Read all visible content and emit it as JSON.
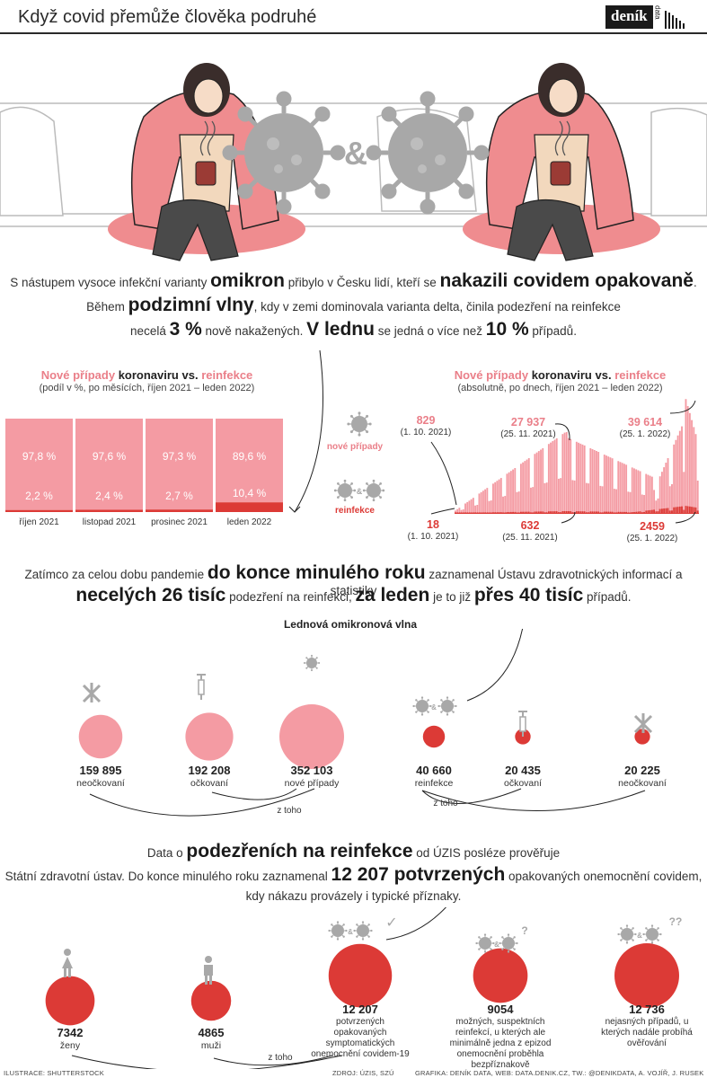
{
  "header": {
    "title": "Když covid přemůže člověka podruhé",
    "logo": "deník",
    "logo_sub": "data"
  },
  "hero": {
    "ampersand": "&"
  },
  "intro": {
    "l1a": "S nástupem vysoce infekční varianty ",
    "l1b": "omikron",
    "l1c": " přibylo v Česku lidí, kteří se ",
    "l1d": "nakazili covidem opakovaně",
    "l1e": ".",
    "l2a": "Během ",
    "l2b": "podzimní vlny",
    "l2c": ", kdy v zemi dominovala varianta delta, činila podezření na reinfekce",
    "l3a": "necelá ",
    "l3b": "3 %",
    "l3c": " nově nakažených. ",
    "l3d": "V lednu",
    "l3e": " se jedná o více než ",
    "l3f": "10 %",
    "l3g": " případů."
  },
  "chart_data": [
    {
      "type": "bar",
      "title_parts": [
        "Nové případy",
        " koronaviru ",
        "vs.",
        " reinfekce"
      ],
      "subtitle": "(podíl v %, po měsících, říjen 2021 – leden 2022)",
      "categories": [
        "říjen 2021",
        "listopad 2021",
        "prosinec 2021",
        "leden 2022"
      ],
      "series": [
        {
          "name": "nové případy",
          "values": [
            97.8,
            97.6,
            97.3,
            89.6
          ],
          "labels": [
            "97,8 %",
            "97,6 %",
            "97,3 %",
            "89,6 %"
          ],
          "color": "#f49ba3"
        },
        {
          "name": "reinfekce",
          "values": [
            2.2,
            2.4,
            2.7,
            10.4
          ],
          "labels": [
            "2,2 %",
            "2,4 %",
            "2,7 %",
            "10,4 %"
          ],
          "color": "#dc3a36"
        }
      ],
      "stacked": true,
      "ylim": [
        0,
        100
      ]
    },
    {
      "type": "bar",
      "title_parts": [
        "Nové případy",
        " koronaviru ",
        "vs.",
        " reinfekce"
      ],
      "subtitle": "(absolutně, po dnech, říjen 2021 – leden 2022)",
      "x": [
        "1. 10. 2021",
        "25. 11. 2021",
        "25. 1. 2022"
      ],
      "series": [
        {
          "name": "nové případy",
          "values": [
            829,
            27937,
            39614
          ],
          "labels": [
            "829",
            "27 937",
            "39 614"
          ],
          "color": "#f49ba3"
        },
        {
          "name": "reinfekce",
          "values": [
            18,
            632,
            2459
          ],
          "labels": [
            "18",
            "632",
            "2459"
          ],
          "color": "#dc3a36"
        }
      ],
      "annotations_dates": [
        "(1. 10. 2021)",
        "(25. 11. 2021)",
        "(25. 1. 2022)"
      ],
      "xlim": [
        "1. 10. 2021",
        "31. 1. 2022"
      ],
      "ylim": [
        0,
        40000
      ]
    },
    {
      "type": "bubble",
      "title": "Lednová omikronová vlna",
      "items": [
        {
          "value": 159895,
          "label": "159 895",
          "desc": "neočkovaní",
          "color": "#f49ba3"
        },
        {
          "value": 192208,
          "label": "192 208",
          "desc": "očkovaní",
          "color": "#f49ba3"
        },
        {
          "value": 352103,
          "label": "352 103",
          "desc": "nové případy",
          "color": "#f49ba3"
        },
        {
          "value": 40660,
          "label": "40 660",
          "desc": "reinfekce",
          "color": "#dc3a36"
        },
        {
          "value": 20435,
          "label": "20 435",
          "desc": "očkovaní",
          "color": "#dc3a36"
        },
        {
          "value": 20225,
          "label": "20 225",
          "desc": "neočkovaní",
          "color": "#dc3a36"
        }
      ],
      "link_label": "z toho"
    },
    {
      "type": "bubble",
      "items": [
        {
          "value": 7342,
          "label": "7342",
          "desc": "ženy",
          "color": "#dc3a36"
        },
        {
          "value": 4865,
          "label": "4865",
          "desc": "muži",
          "color": "#dc3a36"
        },
        {
          "value": 12207,
          "label": "12 207",
          "desc": "potvrzených opakovaných symptomatických onemocnění covidem-19",
          "color": "#dc3a36"
        },
        {
          "value": 9054,
          "label": "9054",
          "desc": "možných, suspektních reinfekcí, u kterých ale minimálně jedna z epizod onemocnění proběhla bezpříznakově",
          "color": "#dc3a36"
        },
        {
          "value": 12736,
          "label": "12 736",
          "desc": "nejasných případů, u kterých nadále probíhá ověřování",
          "color": "#dc3a36"
        }
      ],
      "link_label": "z toho"
    }
  ],
  "chart2_labels": {
    "legend_new": "nové případy",
    "legend_reinf": "reinfekce"
  },
  "mid": {
    "l1a": "Zatímco za celou dobu pandemie ",
    "l1b": "do konce minulého roku",
    "l1c": " zaznamenal Ústavu zdravotnických informací a statistiky",
    "l2a": "necelých 26 tisíc",
    "l2b": " podezření na reinfekci, ",
    "l2c": "za leden",
    "l2d": " je to již ",
    "l2e": "přes 40 tisíc",
    "l2f": " případů."
  },
  "bottom_text": {
    "l1a": "Data o ",
    "l1b": "podezřeních na reinfekce",
    "l1c": " od ÚZIS posléze prověřuje",
    "l2a": "Státní zdravotní ústav. Do konce minulého roku zaznamenal ",
    "l2b": "12 207 potvrzených",
    "l2c": " opakovaných onemocnění covidem,",
    "l3": "kdy nákazu provázely i typické příznaky."
  },
  "footer": {
    "illustration": "ILUSTRACE: SHUTTERSTOCK",
    "source": "ZDROJ: ÚZIS, SZÚ",
    "credits": "GRAFIKA: DENÍK DATA, WEB: DATA.DENIK.CZ, TW.: @DENIKDATA, A. VOJÍŘ, J. RUSEK"
  },
  "colors": {
    "pink": "#f49ba3",
    "red": "#dc3a36",
    "pink_text": "#ea7f89",
    "grey": "#a8a8a8"
  }
}
